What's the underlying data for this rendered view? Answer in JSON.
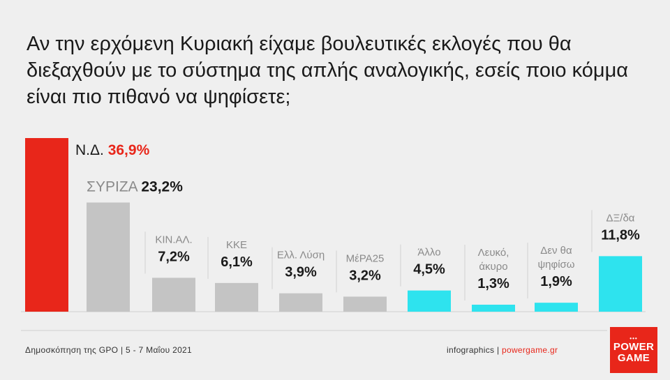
{
  "title": "Αν την ερχόμενη Κυριακή είχαμε βουλευτικές εκλογές που θα διεξαχθούν με το σύστημα της απλής αναλογικής, εσείς ποιο κόμμα είναι πιο πιθανό να ψηφίσετε;",
  "footer": {
    "source": "Δημοσκόπηση της GPO | 5 - 7 Μαΐου 2021",
    "credit_prefix": "infographics | ",
    "credit_site": "powergame.gr"
  },
  "logo": {
    "line1": "POWER",
    "line2": "GAME"
  },
  "colors": {
    "red": "#e8261a",
    "gray": "#c4c4c4",
    "cyan": "#2ee3ee",
    "text": "#1a1a1a"
  },
  "chart_data": {
    "type": "bar",
    "title": "Αν την ερχόμενη Κυριακή είχαμε βουλευτικές εκλογές που θα διεξαχθούν με το σύστημα της απλής αναλογικής, εσείς ποιο κόμμα είναι πιο πιθανό να ψηφίσετε;",
    "categories": [
      "Ν.Δ.",
      "ΣΥΡΙΖΑ",
      "ΚΙΝ.ΑΛ.",
      "ΚΚΕ",
      "Ελλ. Λύση",
      "ΜέΡΑ25",
      "Άλλο",
      "Λευκό, άκυρο",
      "Δεν θα ψηφίσω",
      "ΔΞ/δα"
    ],
    "values": [
      36.9,
      23.2,
      7.2,
      6.1,
      3.9,
      3.2,
      4.5,
      1.3,
      1.9,
      11.8
    ],
    "value_labels": [
      "36,9%",
      "23,2%",
      "7,2%",
      "6,1%",
      "3,9%",
      "3,2%",
      "4,5%",
      "1,3%",
      "1,9%",
      "11,8%"
    ],
    "label_lines": [
      [
        "Ν.Δ."
      ],
      [
        "ΣΥΡΙΖΑ"
      ],
      [
        "ΚΙΝ.ΑΛ."
      ],
      [
        "ΚΚΕ"
      ],
      [
        "Ελλ. Λύση"
      ],
      [
        "ΜέΡΑ25"
      ],
      [
        "Άλλο"
      ],
      [
        "Λευκό,",
        "άκυρο"
      ],
      [
        "Δεν θα",
        "ψηφίσω"
      ],
      [
        "ΔΞ/δα"
      ]
    ],
    "bar_colors": [
      "#e8261a",
      "#c4c4c4",
      "#c4c4c4",
      "#c4c4c4",
      "#c4c4c4",
      "#c4c4c4",
      "#2ee3ee",
      "#2ee3ee",
      "#2ee3ee",
      "#2ee3ee"
    ],
    "unit": "%",
    "ylim": [
      0,
      36.9
    ],
    "grid": false,
    "legend": "none"
  }
}
